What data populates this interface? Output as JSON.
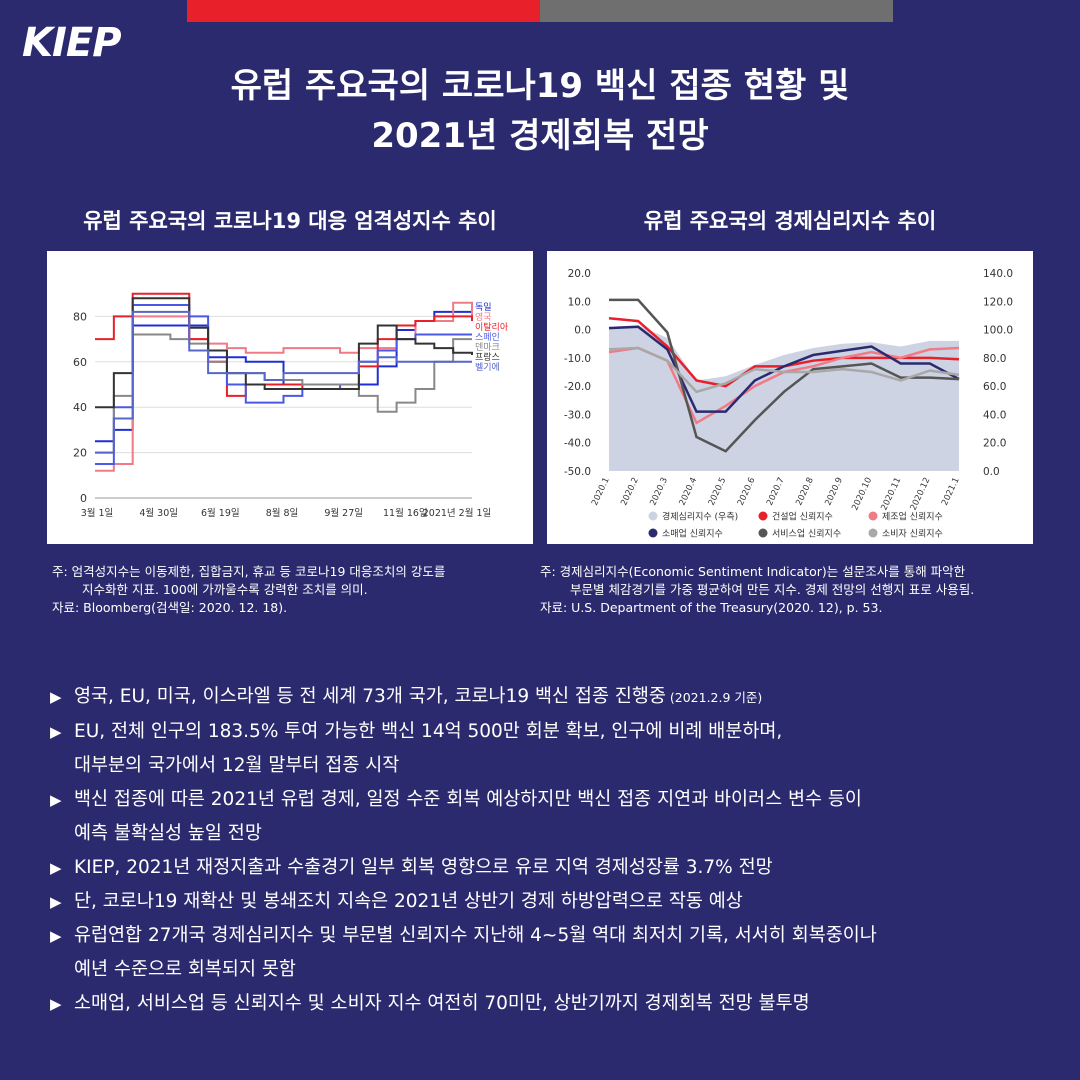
{
  "header": {
    "logo": "KIEP",
    "title_line1": "유럽 주요국의 코로나19 백신 접종 현황 및",
    "title_line2": "2021년 경제회복 전망"
  },
  "chart_data": [
    {
      "type": "line",
      "title": "유럽 주요국의 코로나19 대응 엄격성지수 추이",
      "x_ticks": [
        "3월 1일",
        "4월 30일",
        "6월 19일",
        "8월 8일",
        "9월 27일",
        "11월 16일",
        "2021년 2월 1일"
      ],
      "ylim": [
        0,
        100
      ],
      "y_ticks": [
        0,
        20,
        40,
        60,
        80
      ],
      "grid": true,
      "legend_position": "right",
      "series": [
        {
          "name": "독일",
          "color": "#1f2fd6",
          "values": [
            25,
            30,
            76,
            76,
            76,
            76,
            62,
            62,
            60,
            60,
            50,
            50,
            50,
            50,
            50,
            58,
            74,
            78,
            82,
            82,
            82
          ]
        },
        {
          "name": "영국",
          "color": "#f07a86",
          "values": [
            12,
            15,
            80,
            80,
            80,
            70,
            68,
            66,
            64,
            64,
            66,
            66,
            66,
            64,
            66,
            66,
            70,
            78,
            78,
            86,
            80
          ]
        },
        {
          "name": "이탈리아",
          "color": "#e8202a",
          "values": [
            70,
            80,
            90,
            90,
            90,
            70,
            60,
            45,
            50,
            50,
            50,
            48,
            48,
            50,
            58,
            70,
            76,
            78,
            80,
            80,
            78
          ]
        },
        {
          "name": "스페인",
          "color": "#4a58e8",
          "values": [
            15,
            40,
            85,
            85,
            85,
            80,
            65,
            50,
            42,
            42,
            45,
            48,
            48,
            50,
            60,
            65,
            70,
            72,
            72,
            72,
            72
          ]
        },
        {
          "name": "덴마크",
          "color": "#888888",
          "values": [
            20,
            45,
            72,
            72,
            70,
            68,
            60,
            55,
            55,
            52,
            52,
            50,
            50,
            50,
            45,
            38,
            42,
            48,
            60,
            70,
            70
          ]
        },
        {
          "name": "프랑스",
          "color": "#333333",
          "values": [
            40,
            55,
            88,
            88,
            88,
            75,
            65,
            55,
            50,
            48,
            48,
            48,
            48,
            48,
            68,
            76,
            70,
            68,
            66,
            64,
            63
          ]
        },
        {
          "name": "벨기에",
          "color": "#5566cc",
          "values": [
            20,
            35,
            82,
            82,
            82,
            65,
            55,
            55,
            55,
            52,
            55,
            55,
            55,
            55,
            60,
            62,
            60,
            60,
            60,
            60,
            60
          ]
        }
      ]
    },
    {
      "type": "line",
      "title": "유럽 주요국의 경제심리지수 추이",
      "categories": [
        "2020.1",
        "2020.2",
        "2020.3",
        "2020.4",
        "2020.5",
        "2020.6",
        "2020.7",
        "2020.8",
        "2020.9",
        "2020.10",
        "2020.11",
        "2020.12",
        "2021.1"
      ],
      "ylim_left": [
        -50,
        20
      ],
      "y_ticks_left": [
        "20.0",
        "10.0",
        "0.0",
        "-10.0",
        "-20.0",
        "-30.0",
        "-40.0",
        "-50.0"
      ],
      "ylim_right": [
        0,
        140
      ],
      "y_ticks_right": [
        "140.0",
        "120.0",
        "100.0",
        "80.0",
        "60.0",
        "40.0",
        "20.0",
        "0.0"
      ],
      "legend_position": "bottom",
      "area_series": {
        "name": "경제심리지수 (우측)",
        "color": "#cdd3e3",
        "values": [
          102,
          103,
          94,
          64,
          67,
          75,
          82,
          87,
          90,
          91,
          88,
          92,
          92
        ]
      },
      "series": [
        {
          "name": "건설업 신뢰지수",
          "color": "#e8202a",
          "values": [
            4,
            3,
            -6,
            -18,
            -20,
            -13,
            -13,
            -11,
            -10,
            -10,
            -10,
            -10,
            -10.5
          ]
        },
        {
          "name": "제조업 신뢰지수",
          "color": "#f07a86",
          "values": [
            -8,
            -6.5,
            -11,
            -33,
            -27,
            -20,
            -15,
            -13,
            -10,
            -8,
            -10,
            -7,
            -6.5
          ]
        },
        {
          "name": "소매업 신뢰지수",
          "color": "#2b2a6e",
          "values": [
            0.5,
            1,
            -7,
            -29,
            -29,
            -18,
            -13,
            -9,
            -7.5,
            -6,
            -12,
            -12,
            -17.5
          ]
        },
        {
          "name": "서비스업 신뢰지수",
          "color": "#555555",
          "values": [
            10.5,
            10.5,
            -1,
            -38,
            -43,
            -32,
            -22,
            -14,
            -13,
            -12,
            -17,
            -17,
            -17.5
          ]
        },
        {
          "name": "소비자 신뢰지수",
          "color": "#a8a8a8",
          "values": [
            -7,
            -6.5,
            -11,
            -22,
            -19,
            -14,
            -15,
            -15,
            -14,
            -15,
            -18,
            -14.5,
            -16
          ]
        }
      ]
    }
  ],
  "notes": {
    "left_line1": "주: 엄격성지수는 이동제한, 집합금지, 휴교 등 코로나19 대응조치의 강도를",
    "left_line2": "지수화한 지표. 100에 가까울수록 강력한 조치를 의미.",
    "left_line3": "자료: Bloomberg(검색일: 2020. 12. 18).",
    "right_line1": "주: 경제심리지수(Economic Sentiment Indicator)는 설문조사를 통해 파악한",
    "right_line2": "부문별 체감경기를 가중 평균하여 만든 지수.  경제 전망의 선행지 표로 사용됨.",
    "right_line3": "자료: U.S. Department of the Treasury(2020. 12), p. 53."
  },
  "bullets": {
    "arrow": "▶",
    "b1": "영국, EU, 미국, 이스라엘 등 전 세계 73개 국가, 코로나19 백신 접종 진행중",
    "b1_small": " (2021.2.9 기준)",
    "b2": "EU, 전체 인구의 183.5% 투여 가능한 백신 14억 500만 회분 확보, 인구에 비례 배분하며,",
    "b2_cont": "대부분의 국가에서 12월 말부터 접종 시작",
    "b3": "백신 접종에 따른 2021년 유럽 경제, 일정 수준  회복 예상하지만 백신 접종 지연과 바이러스 변수 등이",
    "b3_cont": "예측 불확실성 높일 전망",
    "b4": "KIEP, 2021년 재정지출과 수출경기 일부 회복 영향으로 유로 지역 경제성장률 3.7% 전망",
    "b5": "단, 코로나19 재확산 및 봉쇄조치 지속은 2021년 상반기 경제 하방압력으로 작동 예상",
    "b6": "유럽연합 27개국 경제심리지수 및 부문별 신뢰지수 지난해 4~5월 역대 최저치 기록, 서서히 회복중이나",
    "b6_cont": "예년 수준으로 회복되지 못함",
    "b7": "소매업, 서비스업 등 신뢰지수 및 소비자 지수 여전히 70미만, 상반기까지 경제회복 전망 불투명"
  }
}
